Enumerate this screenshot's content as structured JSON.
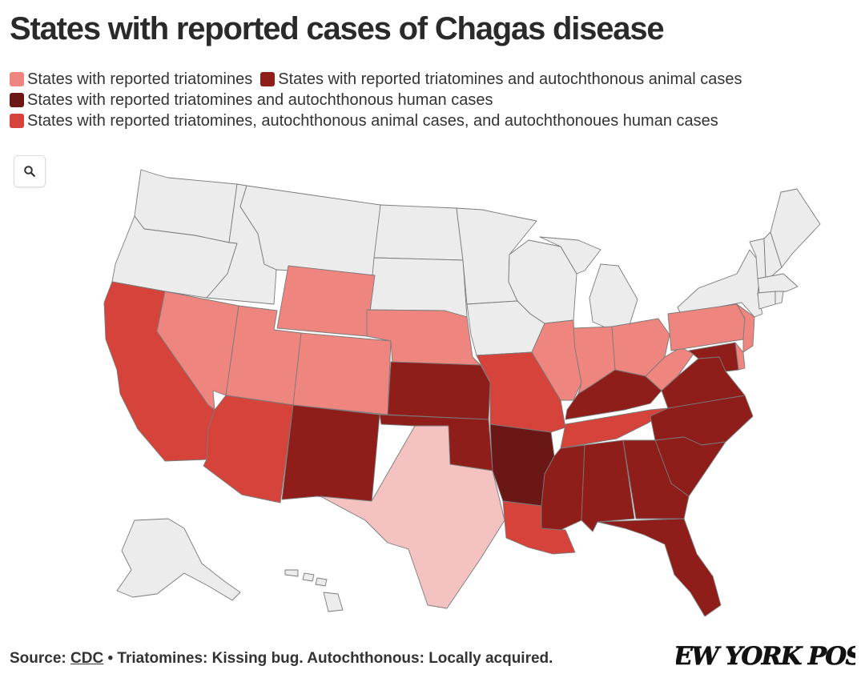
{
  "title": "States with reported cases of Chagas disease",
  "legend": [
    {
      "label": "States with reported triatomines",
      "color": "#ee857e"
    },
    {
      "label": "States with reported triatomines and autochthonous animal cases",
      "color": "#8f1d1a"
    },
    {
      "label": "States with reported triatomines and autochthonous human cases",
      "color": "#6b1716"
    },
    {
      "label": "States with reported triatomines, autochthonous animal cases, and autochthonoues human cases",
      "color": "#d6433a"
    }
  ],
  "colors": {
    "none": "#ececec",
    "texas": "#f5c2c2",
    "triatomines": "#ee857e",
    "animal": "#8f1d1a",
    "human": "#6b1716",
    "all": "#d6433a"
  },
  "search_icon": "search-icon",
  "footer": {
    "source_prefix": "Source:",
    "source_link": "CDC",
    "note": "• Triatomines: Kissing bug. Autochthonous: Locally acquired."
  },
  "logo_text": "NEW YORK POST",
  "states": [
    {
      "name": "Washington",
      "category": "none"
    },
    {
      "name": "Oregon",
      "category": "none"
    },
    {
      "name": "Idaho",
      "category": "none"
    },
    {
      "name": "Montana",
      "category": "none"
    },
    {
      "name": "North Dakota",
      "category": "none"
    },
    {
      "name": "South Dakota",
      "category": "none"
    },
    {
      "name": "Minnesota",
      "category": "none"
    },
    {
      "name": "Iowa",
      "category": "none"
    },
    {
      "name": "Wisconsin",
      "category": "none"
    },
    {
      "name": "Michigan",
      "category": "none"
    },
    {
      "name": "New York",
      "category": "none"
    },
    {
      "name": "Vermont",
      "category": "none"
    },
    {
      "name": "New Hampshire",
      "category": "none"
    },
    {
      "name": "Maine",
      "category": "none"
    },
    {
      "name": "Massachusetts",
      "category": "none"
    },
    {
      "name": "Connecticut",
      "category": "none"
    },
    {
      "name": "Rhode Island",
      "category": "none"
    },
    {
      "name": "Alaska",
      "category": "none"
    },
    {
      "name": "Hawaii",
      "category": "none"
    },
    {
      "name": "California",
      "category": "all"
    },
    {
      "name": "Arizona",
      "category": "all"
    },
    {
      "name": "Missouri",
      "category": "all"
    },
    {
      "name": "Louisiana",
      "category": "all"
    },
    {
      "name": "Tennessee",
      "category": "all"
    },
    {
      "name": "Nevada",
      "category": "triatomines"
    },
    {
      "name": "Utah",
      "category": "triatomines"
    },
    {
      "name": "Wyoming",
      "category": "triatomines"
    },
    {
      "name": "Colorado",
      "category": "triatomines"
    },
    {
      "name": "Nebraska",
      "category": "triatomines"
    },
    {
      "name": "Illinois",
      "category": "triatomines"
    },
    {
      "name": "Indiana",
      "category": "triatomines"
    },
    {
      "name": "Ohio",
      "category": "triatomines"
    },
    {
      "name": "Pennsylvania",
      "category": "triatomines"
    },
    {
      "name": "West Virginia",
      "category": "triatomines"
    },
    {
      "name": "New Jersey",
      "category": "triatomines"
    },
    {
      "name": "Delaware",
      "category": "triatomines"
    },
    {
      "name": "Texas",
      "category": "texas"
    },
    {
      "name": "New Mexico",
      "category": "animal"
    },
    {
      "name": "Kansas",
      "category": "animal"
    },
    {
      "name": "Oklahoma",
      "category": "animal"
    },
    {
      "name": "Mississippi",
      "category": "animal"
    },
    {
      "name": "Alabama",
      "category": "animal"
    },
    {
      "name": "Georgia",
      "category": "animal"
    },
    {
      "name": "Florida",
      "category": "animal"
    },
    {
      "name": "South Carolina",
      "category": "animal"
    },
    {
      "name": "North Carolina",
      "category": "animal"
    },
    {
      "name": "Virginia",
      "category": "animal"
    },
    {
      "name": "Kentucky",
      "category": "animal"
    },
    {
      "name": "Maryland",
      "category": "animal"
    },
    {
      "name": "Arkansas",
      "category": "human"
    }
  ]
}
